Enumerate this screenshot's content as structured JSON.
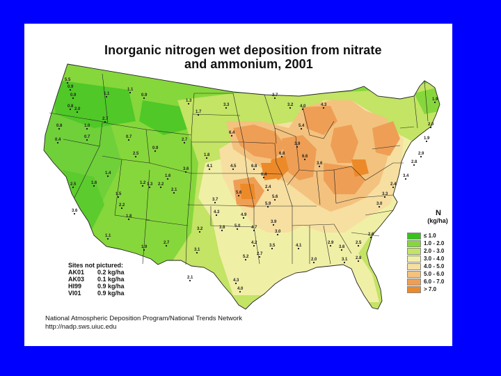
{
  "title": {
    "line1": "Inorganic nitrogen wet deposition from nitrate",
    "line2": "and ammonium, 2001"
  },
  "legend": {
    "unit_symbol": "N",
    "unit": "(kg/ha)",
    "classes": [
      {
        "label": "≤ 1.0",
        "color": "#39c21c"
      },
      {
        "label": "1.0 - 2.0",
        "color": "#86d73b"
      },
      {
        "label": "2.0 - 3.0",
        "color": "#c3e464"
      },
      {
        "label": "3.0 - 4.0",
        "color": "#f0efa6"
      },
      {
        "label": "4.0 - 5.0",
        "color": "#f6dfa0"
      },
      {
        "label": "5.0 - 6.0",
        "color": "#f3c27e"
      },
      {
        "label": "6.0 - 7.0",
        "color": "#ee9f55"
      },
      {
        "label": "> 7.0",
        "color": "#ec8a2a"
      }
    ]
  },
  "sites_not_pictured": {
    "heading": "Sites not pictured:",
    "rows": [
      {
        "code": "AK01",
        "value": "0.2 kg/ha"
      },
      {
        "code": "AK03",
        "value": "0.1 kg/ha"
      },
      {
        "code": "HI99",
        "value": "0.9 kg/ha"
      },
      {
        "code": "VI01",
        "value": "0.9 kg/ha"
      }
    ]
  },
  "credits": {
    "line1": "National Atmospheric Deposition Program/National Trends Network",
    "line2": "http://nadp.sws.uiuc.edu"
  },
  "map_labels": [
    "5.5",
    "0.9",
    "0.9",
    "0.8",
    "2.0",
    "1.1",
    "1.1",
    "0.9",
    "1.3",
    "1.7",
    "3.3",
    "3.7",
    "3.2",
    "4.0",
    "4.3",
    "2.7",
    "1.0",
    "0.8",
    "0.4",
    "0.7",
    "0.7",
    "0.9",
    "2.7",
    "6.4",
    "6.8",
    "6.6",
    "3.6",
    "2.5",
    "1.4",
    "1.6",
    "1.3",
    "2.1",
    "4.1",
    "4.5",
    "5.6",
    "6.8",
    "6.4",
    "5.9",
    "5.4",
    "3.9",
    "1.5",
    "1.2",
    "2.2",
    "1.6",
    "3.6",
    "1.8",
    "3.7",
    "4.3",
    "3.8",
    "4.9",
    "4.7",
    "3.9",
    "5.6",
    "2.4",
    "2.2",
    "1.8",
    "2.5",
    "3.6",
    "3.2",
    "3.1",
    "5.0",
    "4.2",
    "2.7",
    "3.5",
    "3.0",
    "1.1",
    "1.9",
    "2.7",
    "2.1",
    "4.3",
    "4.0",
    "5.2",
    "4.1",
    "2.0",
    "2.9",
    "3.1",
    "2.8",
    "3.6",
    "2.5",
    "2.6",
    "3.0",
    "3.3",
    "2.4",
    "3.4",
    "2.8",
    "2.9",
    "1.9",
    "2.0",
    "1.9"
  ]
}
